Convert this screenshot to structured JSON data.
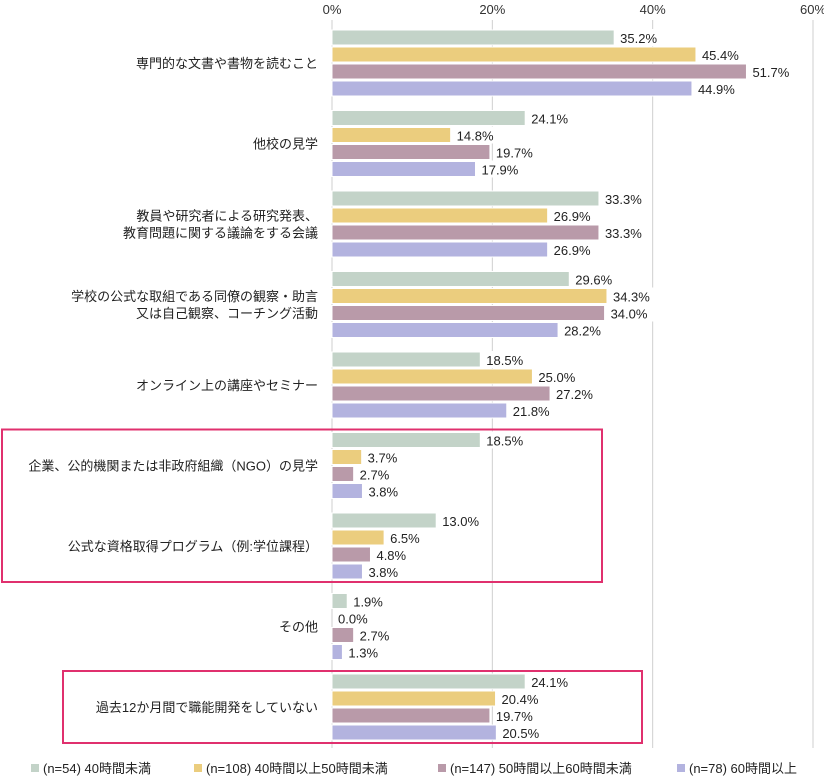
{
  "chart_data": {
    "type": "bar",
    "orientation": "horizontal",
    "xlim": [
      0,
      60
    ],
    "ticks": [
      0,
      20,
      40,
      60
    ],
    "tick_labels": [
      "0%",
      "20%",
      "40%",
      "60%"
    ],
    "grid": true,
    "legend_position": "bottom",
    "categories": [
      [
        "専門的な文書や書物を読むこと"
      ],
      [
        "他校の見学"
      ],
      [
        "教員や研究者による研究発表、",
        "教育問題に関する議論をする会議"
      ],
      [
        "学校の公式な取組である同僚の観察・助言",
        "又は自己観察、コーチング活動"
      ],
      [
        "オンライン上の講座やセミナー"
      ],
      [
        "企業、公的機関または非政府組織（NGO）の見学"
      ],
      [
        "公式な資格取得プログラム（例:学位課程）"
      ],
      [
        "その他"
      ],
      [
        "過去12か月間で職能開発をしていない"
      ]
    ],
    "series": [
      {
        "name": "(n=54) 40時間未満",
        "color": "#c3d3c8",
        "values": [
          35.2,
          24.1,
          33.3,
          29.6,
          18.5,
          18.5,
          13.0,
          1.9,
          24.1
        ],
        "labels": [
          "35.2%",
          "24.1%",
          "33.3%",
          "29.6%",
          "18.5%",
          "18.5%",
          "13.0%",
          "1.9%",
          "24.1%"
        ]
      },
      {
        "name": "(n=108) 40時間以上50時間未満",
        "color": "#ebcd7e",
        "values": [
          45.4,
          14.8,
          26.9,
          34.3,
          25.0,
          3.7,
          6.5,
          0.0,
          20.4
        ],
        "labels": [
          "45.4%",
          "14.8%",
          "26.9%",
          "34.3%",
          "25.0%",
          "3.7%",
          "6.5%",
          "0.0%",
          "20.4%"
        ]
      },
      {
        "name": "(n=147) 50時間以上60時間未満",
        "color": "#b99aa9",
        "values": [
          51.7,
          19.7,
          33.3,
          34.0,
          27.2,
          2.7,
          4.8,
          2.7,
          19.7
        ],
        "labels": [
          "51.7%",
          "19.7%",
          "33.3%",
          "34.0%",
          "27.2%",
          "2.7%",
          "4.8%",
          "2.7%",
          "19.7%"
        ]
      },
      {
        "name": "(n=78) 60時間以上",
        "color": "#b3b3df",
        "values": [
          44.9,
          17.9,
          26.9,
          28.2,
          21.8,
          3.8,
          3.8,
          1.3,
          20.5
        ],
        "labels": [
          "44.9%",
          "17.9%",
          "26.9%",
          "28.2%",
          "21.8%",
          "3.8%",
          "3.8%",
          "1.3%",
          "20.5%"
        ]
      }
    ],
    "highlights": [
      {
        "from_category": 5,
        "to_category": 6,
        "color": "#e0306e"
      },
      {
        "from_category": 8,
        "to_category": 8,
        "color": "#e0306e"
      }
    ]
  }
}
